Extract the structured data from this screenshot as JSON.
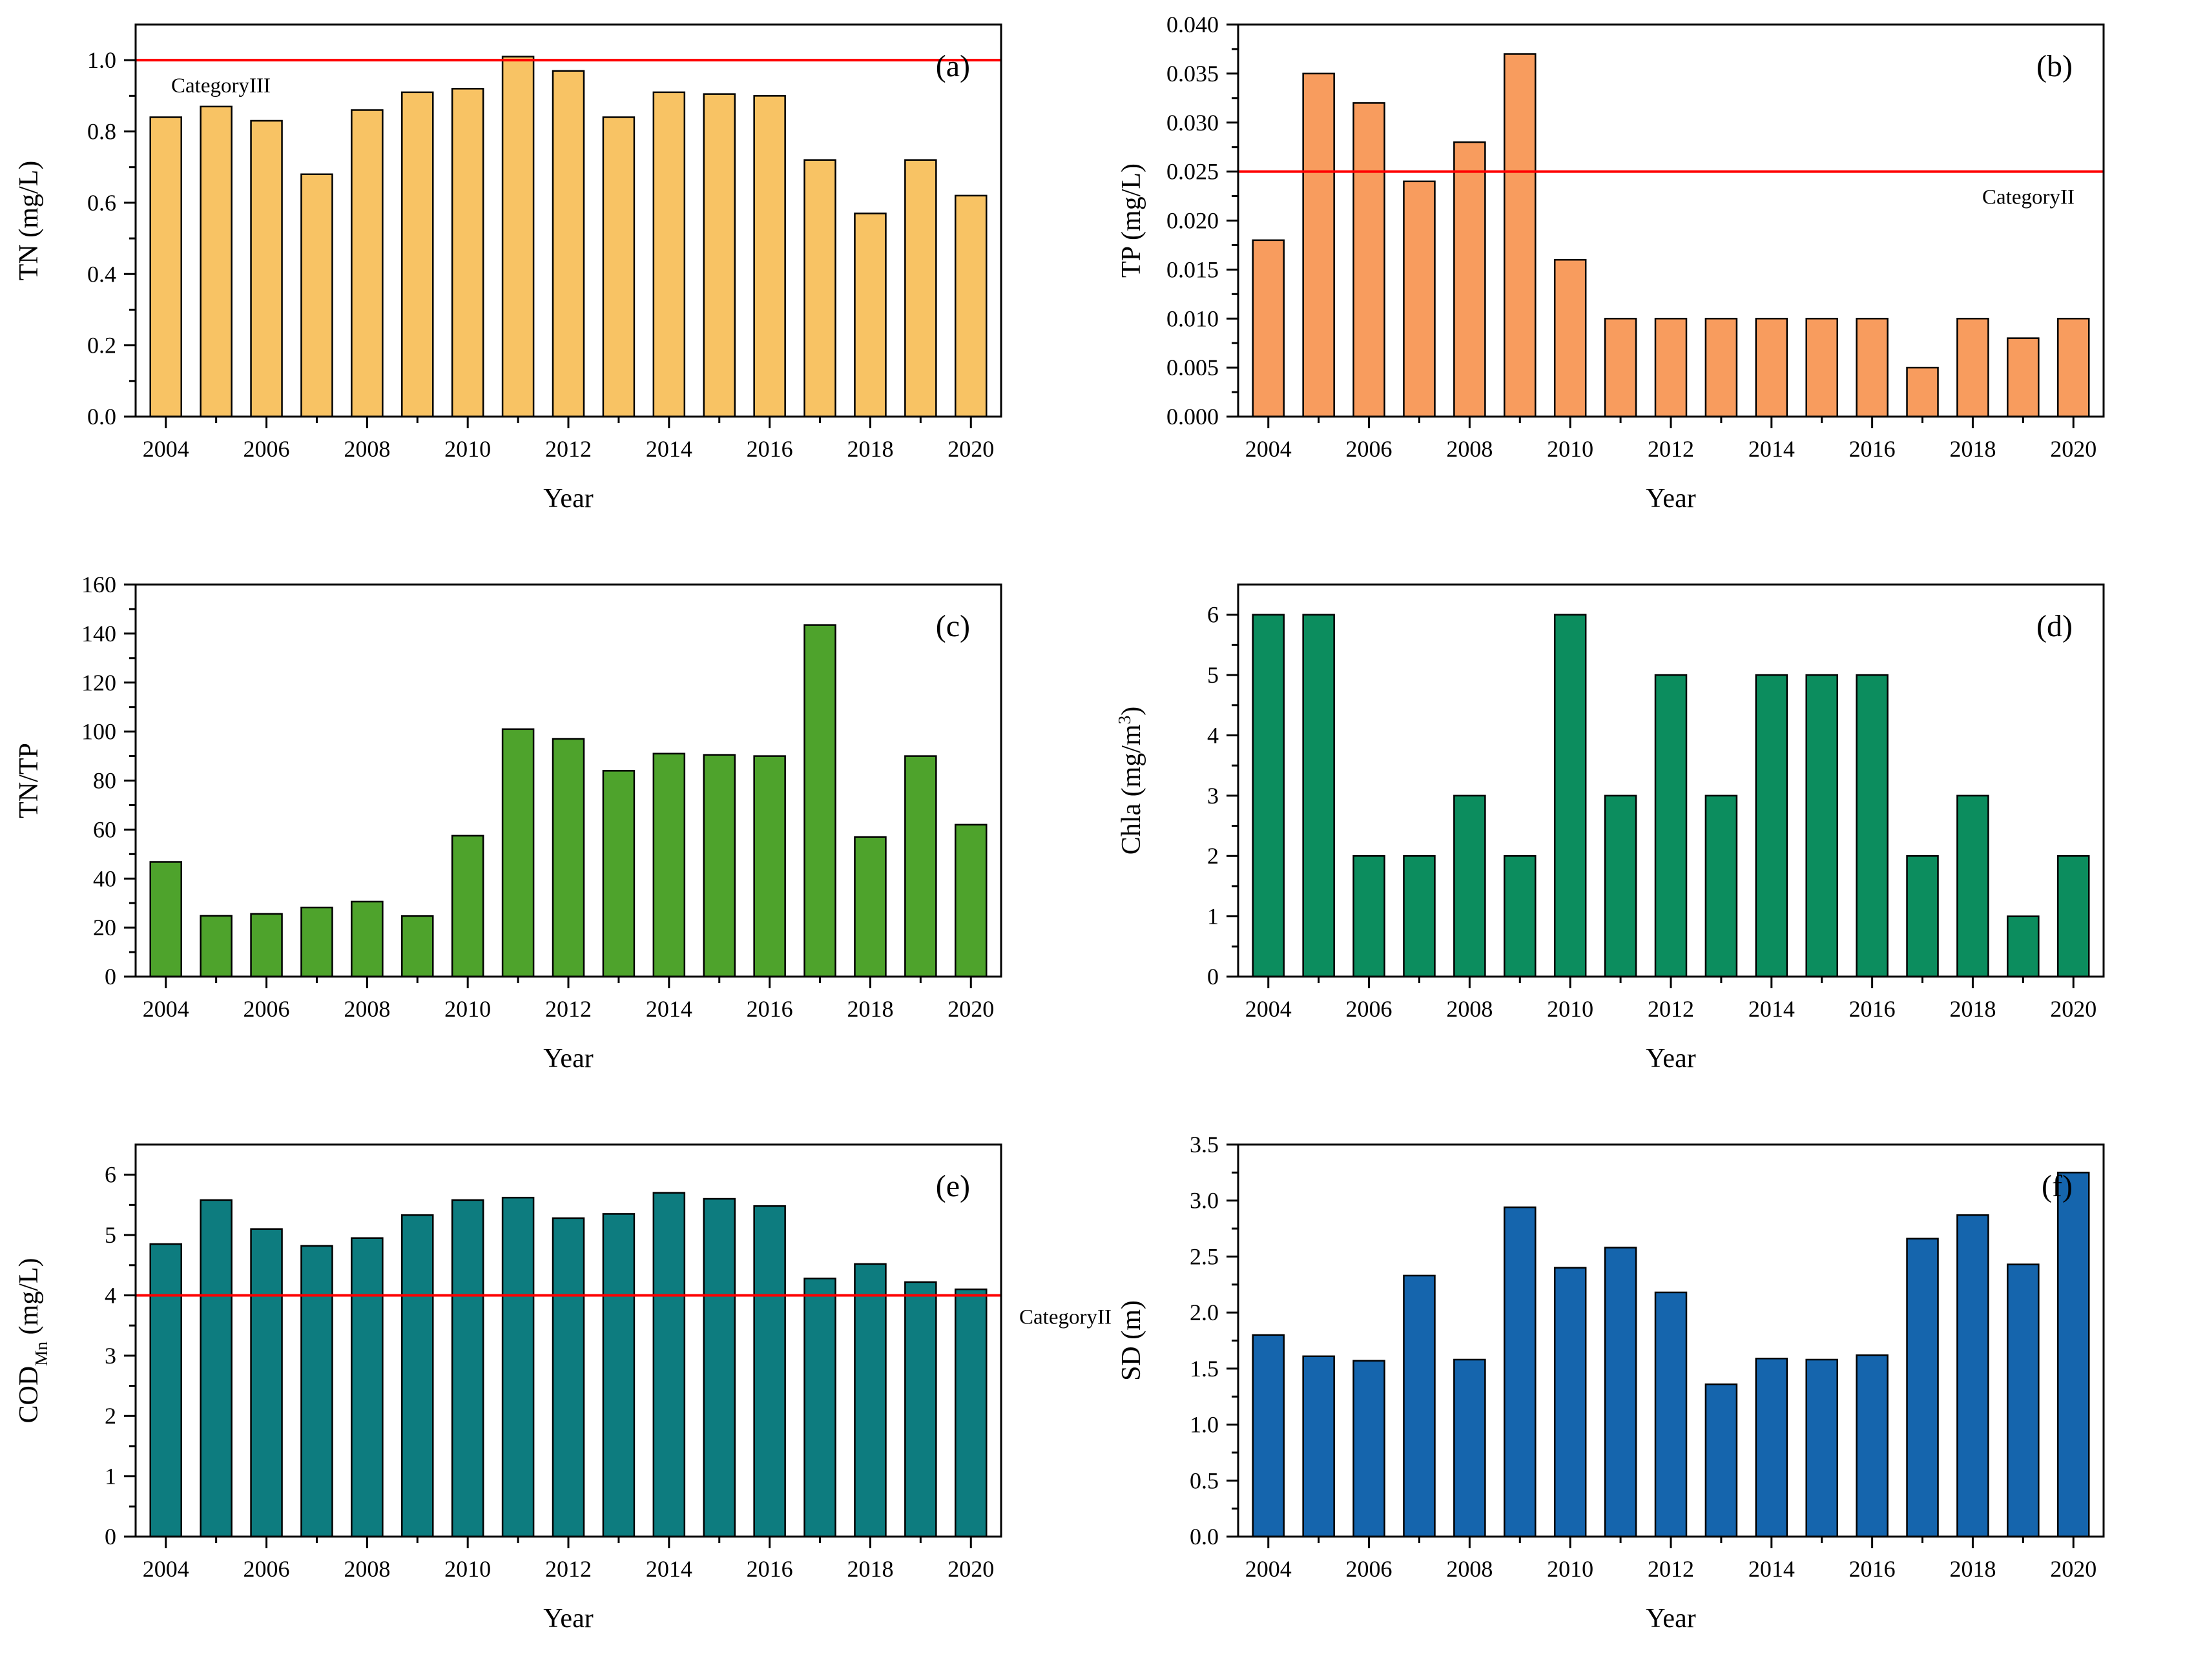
{
  "figure": {
    "background": "#ffffff",
    "axis_color": "#000000",
    "reference_line_color": "#ff0000",
    "panels_order": [
      "a",
      "b",
      "c",
      "d",
      "e",
      "f"
    ]
  },
  "chart_data": [
    {
      "id": "a",
      "panel_label": "(a)",
      "type": "bar",
      "xlabel": "Year",
      "ylabel_parts": [
        {
          "t": "TN (mg/L)"
        }
      ],
      "years": [
        2004,
        2005,
        2006,
        2007,
        2008,
        2009,
        2010,
        2011,
        2012,
        2013,
        2014,
        2015,
        2016,
        2017,
        2018,
        2019,
        2020
      ],
      "values": [
        0.84,
        0.87,
        0.83,
        0.68,
        0.86,
        0.91,
        0.92,
        1.01,
        0.97,
        0.84,
        0.91,
        0.905,
        0.9,
        0.72,
        0.57,
        0.72,
        0.62
      ],
      "xlim": [
        2003.4,
        2020.6
      ],
      "ylim": [
        0,
        1.1
      ],
      "ytick_step": 0.2,
      "yminor_step": 0.1,
      "ytick_decimals": 1,
      "xtick_label_step": 2,
      "bar_color": "#f8c364",
      "bar_edge_color": "#000000",
      "ref_line": {
        "value": 1.0,
        "label": "CategoryIII",
        "position": "inside-left",
        "color": "#ff0000"
      }
    },
    {
      "id": "b",
      "panel_label": "(b)",
      "type": "bar",
      "xlabel": "Year",
      "ylabel_parts": [
        {
          "t": "TP (mg/L)"
        }
      ],
      "years": [
        2004,
        2005,
        2006,
        2007,
        2008,
        2009,
        2010,
        2011,
        2012,
        2013,
        2014,
        2015,
        2016,
        2017,
        2018,
        2019,
        2020
      ],
      "values": [
        0.018,
        0.035,
        0.032,
        0.024,
        0.028,
        0.037,
        0.016,
        0.01,
        0.01,
        0.01,
        0.01,
        0.01,
        0.01,
        0.005,
        0.01,
        0.008,
        0.01
      ],
      "xlim": [
        2003.4,
        2020.6
      ],
      "ylim": [
        0,
        0.04
      ],
      "ytick_step": 0.005,
      "yminor_step": 0.0025,
      "ytick_decimals": 3,
      "xtick_label_step": 2,
      "bar_color": "#f89c5e",
      "bar_edge_color": "#000000",
      "ref_line": {
        "value": 0.025,
        "label": "CategoryII",
        "position": "inside-right",
        "color": "#ff0000"
      }
    },
    {
      "id": "c",
      "panel_label": "(c)",
      "type": "bar",
      "xlabel": "Year",
      "ylabel_parts": [
        {
          "t": "TN/TP"
        }
      ],
      "years": [
        2004,
        2005,
        2006,
        2007,
        2008,
        2009,
        2010,
        2011,
        2012,
        2013,
        2014,
        2015,
        2016,
        2017,
        2018,
        2019,
        2020
      ],
      "values": [
        46.8,
        24.8,
        25.6,
        28.2,
        30.6,
        24.7,
        57.5,
        101,
        97,
        84,
        91,
        90.5,
        90,
        143.5,
        57,
        90,
        62
      ],
      "xlim": [
        2003.4,
        2020.6
      ],
      "ylim": [
        0,
        160
      ],
      "ytick_step": 20,
      "yminor_step": 10,
      "ytick_decimals": 0,
      "xtick_label_step": 2,
      "bar_color": "#4ea32c",
      "bar_edge_color": "#000000",
      "ref_line": null
    },
    {
      "id": "d",
      "panel_label": "(d)",
      "type": "bar",
      "xlabel": "Year",
      "ylabel_parts": [
        {
          "t": "Chla (mg/m"
        },
        {
          "t": "3",
          "sup": true
        },
        {
          "t": ")"
        }
      ],
      "years": [
        2004,
        2005,
        2006,
        2007,
        2008,
        2009,
        2010,
        2011,
        2012,
        2013,
        2014,
        2015,
        2016,
        2017,
        2018,
        2019,
        2020
      ],
      "values": [
        6,
        6,
        2,
        2,
        3,
        2,
        6,
        3,
        5,
        3,
        5,
        5,
        5,
        2,
        3,
        1,
        2
      ],
      "xlim": [
        2003.4,
        2020.6
      ],
      "ylim": [
        0,
        6.5
      ],
      "ytick_step": 1,
      "yminor_step": 0.5,
      "ytick_decimals": 0,
      "xtick_label_step": 2,
      "bar_color": "#0c8d5e",
      "bar_edge_color": "#000000",
      "ref_line": null
    },
    {
      "id": "e",
      "panel_label": "(e)",
      "type": "bar",
      "xlabel": "Year",
      "ylabel_parts": [
        {
          "t": "COD"
        },
        {
          "t": "Mn",
          "sub": true
        },
        {
          "t": " (mg/L)"
        }
      ],
      "years": [
        2004,
        2005,
        2006,
        2007,
        2008,
        2009,
        2010,
        2011,
        2012,
        2013,
        2014,
        2015,
        2016,
        2017,
        2018,
        2019,
        2020
      ],
      "values": [
        4.85,
        5.58,
        5.1,
        4.82,
        4.95,
        5.33,
        5.58,
        5.62,
        5.28,
        5.35,
        5.7,
        5.6,
        5.48,
        4.28,
        4.52,
        4.22,
        4.1
      ],
      "xlim": [
        2003.4,
        2020.6
      ],
      "ylim": [
        0,
        6.5
      ],
      "ytick_step": 1,
      "yminor_step": 0.5,
      "ytick_decimals": 0,
      "xtick_label_step": 2,
      "bar_color": "#0d7c7f",
      "bar_edge_color": "#000000",
      "ref_line": {
        "value": 4.0,
        "label": "CategoryII",
        "position": "outside-right",
        "color": "#ff0000"
      }
    },
    {
      "id": "f",
      "panel_label": "(f)",
      "type": "bar",
      "xlabel": "Year",
      "ylabel_parts": [
        {
          "t": "SD (m)"
        }
      ],
      "years": [
        2004,
        2005,
        2006,
        2007,
        2008,
        2009,
        2010,
        2011,
        2012,
        2013,
        2014,
        2015,
        2016,
        2017,
        2018,
        2019,
        2020
      ],
      "values": [
        1.8,
        1.61,
        1.57,
        2.33,
        1.58,
        2.94,
        2.4,
        2.58,
        2.18,
        1.36,
        1.59,
        1.58,
        1.62,
        2.66,
        2.87,
        2.43,
        3.25
      ],
      "xlim": [
        2003.4,
        2020.6
      ],
      "ylim": [
        0,
        3.5
      ],
      "ytick_step": 0.5,
      "yminor_step": 0.25,
      "ytick_decimals": 1,
      "xtick_label_step": 2,
      "bar_color": "#1565ad",
      "bar_edge_color": "#000000",
      "ref_line": null
    }
  ]
}
